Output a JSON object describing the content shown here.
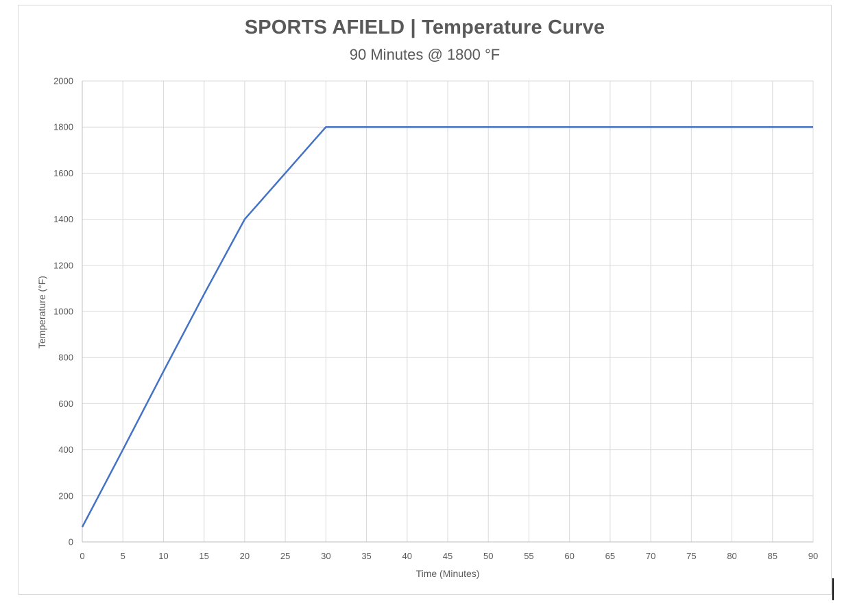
{
  "chart_data": {
    "type": "line",
    "title": "SPORTS AFIELD | Temperature Curve",
    "subtitle": "90 Minutes @ 1800 °F",
    "xlabel": "Time (Minutes)",
    "ylabel": "Temperature (°F)",
    "xlim": [
      0,
      90
    ],
    "ylim": [
      0,
      2000
    ],
    "x_ticks": [
      0,
      5,
      10,
      15,
      20,
      25,
      30,
      35,
      40,
      45,
      50,
      55,
      60,
      65,
      70,
      75,
      80,
      85,
      90
    ],
    "y_ticks": [
      0,
      200,
      400,
      600,
      800,
      1000,
      1200,
      1400,
      1600,
      1800,
      2000
    ],
    "grid": true,
    "legend": "none",
    "series": [
      {
        "color": "#4472c4",
        "x": [
          0,
          5,
          10,
          15,
          20,
          25,
          28,
          30,
          90
        ],
        "y": [
          65,
          400,
          740,
          1075,
          1400,
          1600,
          1720,
          1800,
          1800
        ]
      }
    ]
  }
}
